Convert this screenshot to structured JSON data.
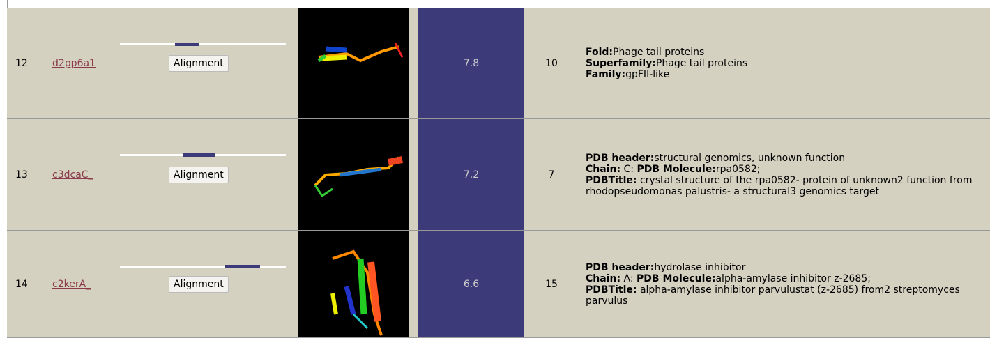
{
  "table": {
    "rows": [
      {
        "rank": "12",
        "id": "d2pp6a1",
        "button": "Alignment",
        "confidence": "7.8",
        "identity": "10",
        "description": [
          [
            {
              "label": "Fold:",
              "text": "Phage tail proteins"
            }
          ],
          [
            {
              "label": "Superfamily:",
              "text": "Phage tail proteins"
            }
          ],
          [
            {
              "label": "Family:",
              "text": "gpFII-like"
            }
          ]
        ]
      },
      {
        "rank": "13",
        "id": "c3dcaC_",
        "button": "Alignment",
        "confidence": "7.2",
        "identity": "7",
        "description": [
          [
            {
              "label": "PDB header:",
              "text": "structural genomics, unknown function"
            }
          ],
          [
            {
              "label": "Chain:",
              "text": "C:"
            },
            {
              "label": "PDB Molecule:",
              "text": "rpa0582;"
            }
          ],
          [
            {
              "label": "PDBTitle:",
              "text": "crystal structure of the rpa0582- protein of unknown2 function from rhodopseudomonas palustris- a structural3 genomics target"
            }
          ]
        ]
      },
      {
        "rank": "14",
        "id": "c2kerA_",
        "button": "Alignment",
        "confidence": "6.6",
        "identity": "15",
        "description": [
          [
            {
              "label": "PDB header:",
              "text": "hydrolase inhibitor"
            }
          ],
          [
            {
              "label": "Chain:",
              "text": "A:"
            },
            {
              "label": "PDB Molecule:",
              "text": "alpha-amylase inhibitor z-2685;"
            }
          ],
          [
            {
              "label": "PDBTitle:",
              "text": "alpha-amylase inhibitor parvulustat (z-2685) from2 streptomyces parvulus"
            }
          ]
        ]
      }
    ]
  }
}
